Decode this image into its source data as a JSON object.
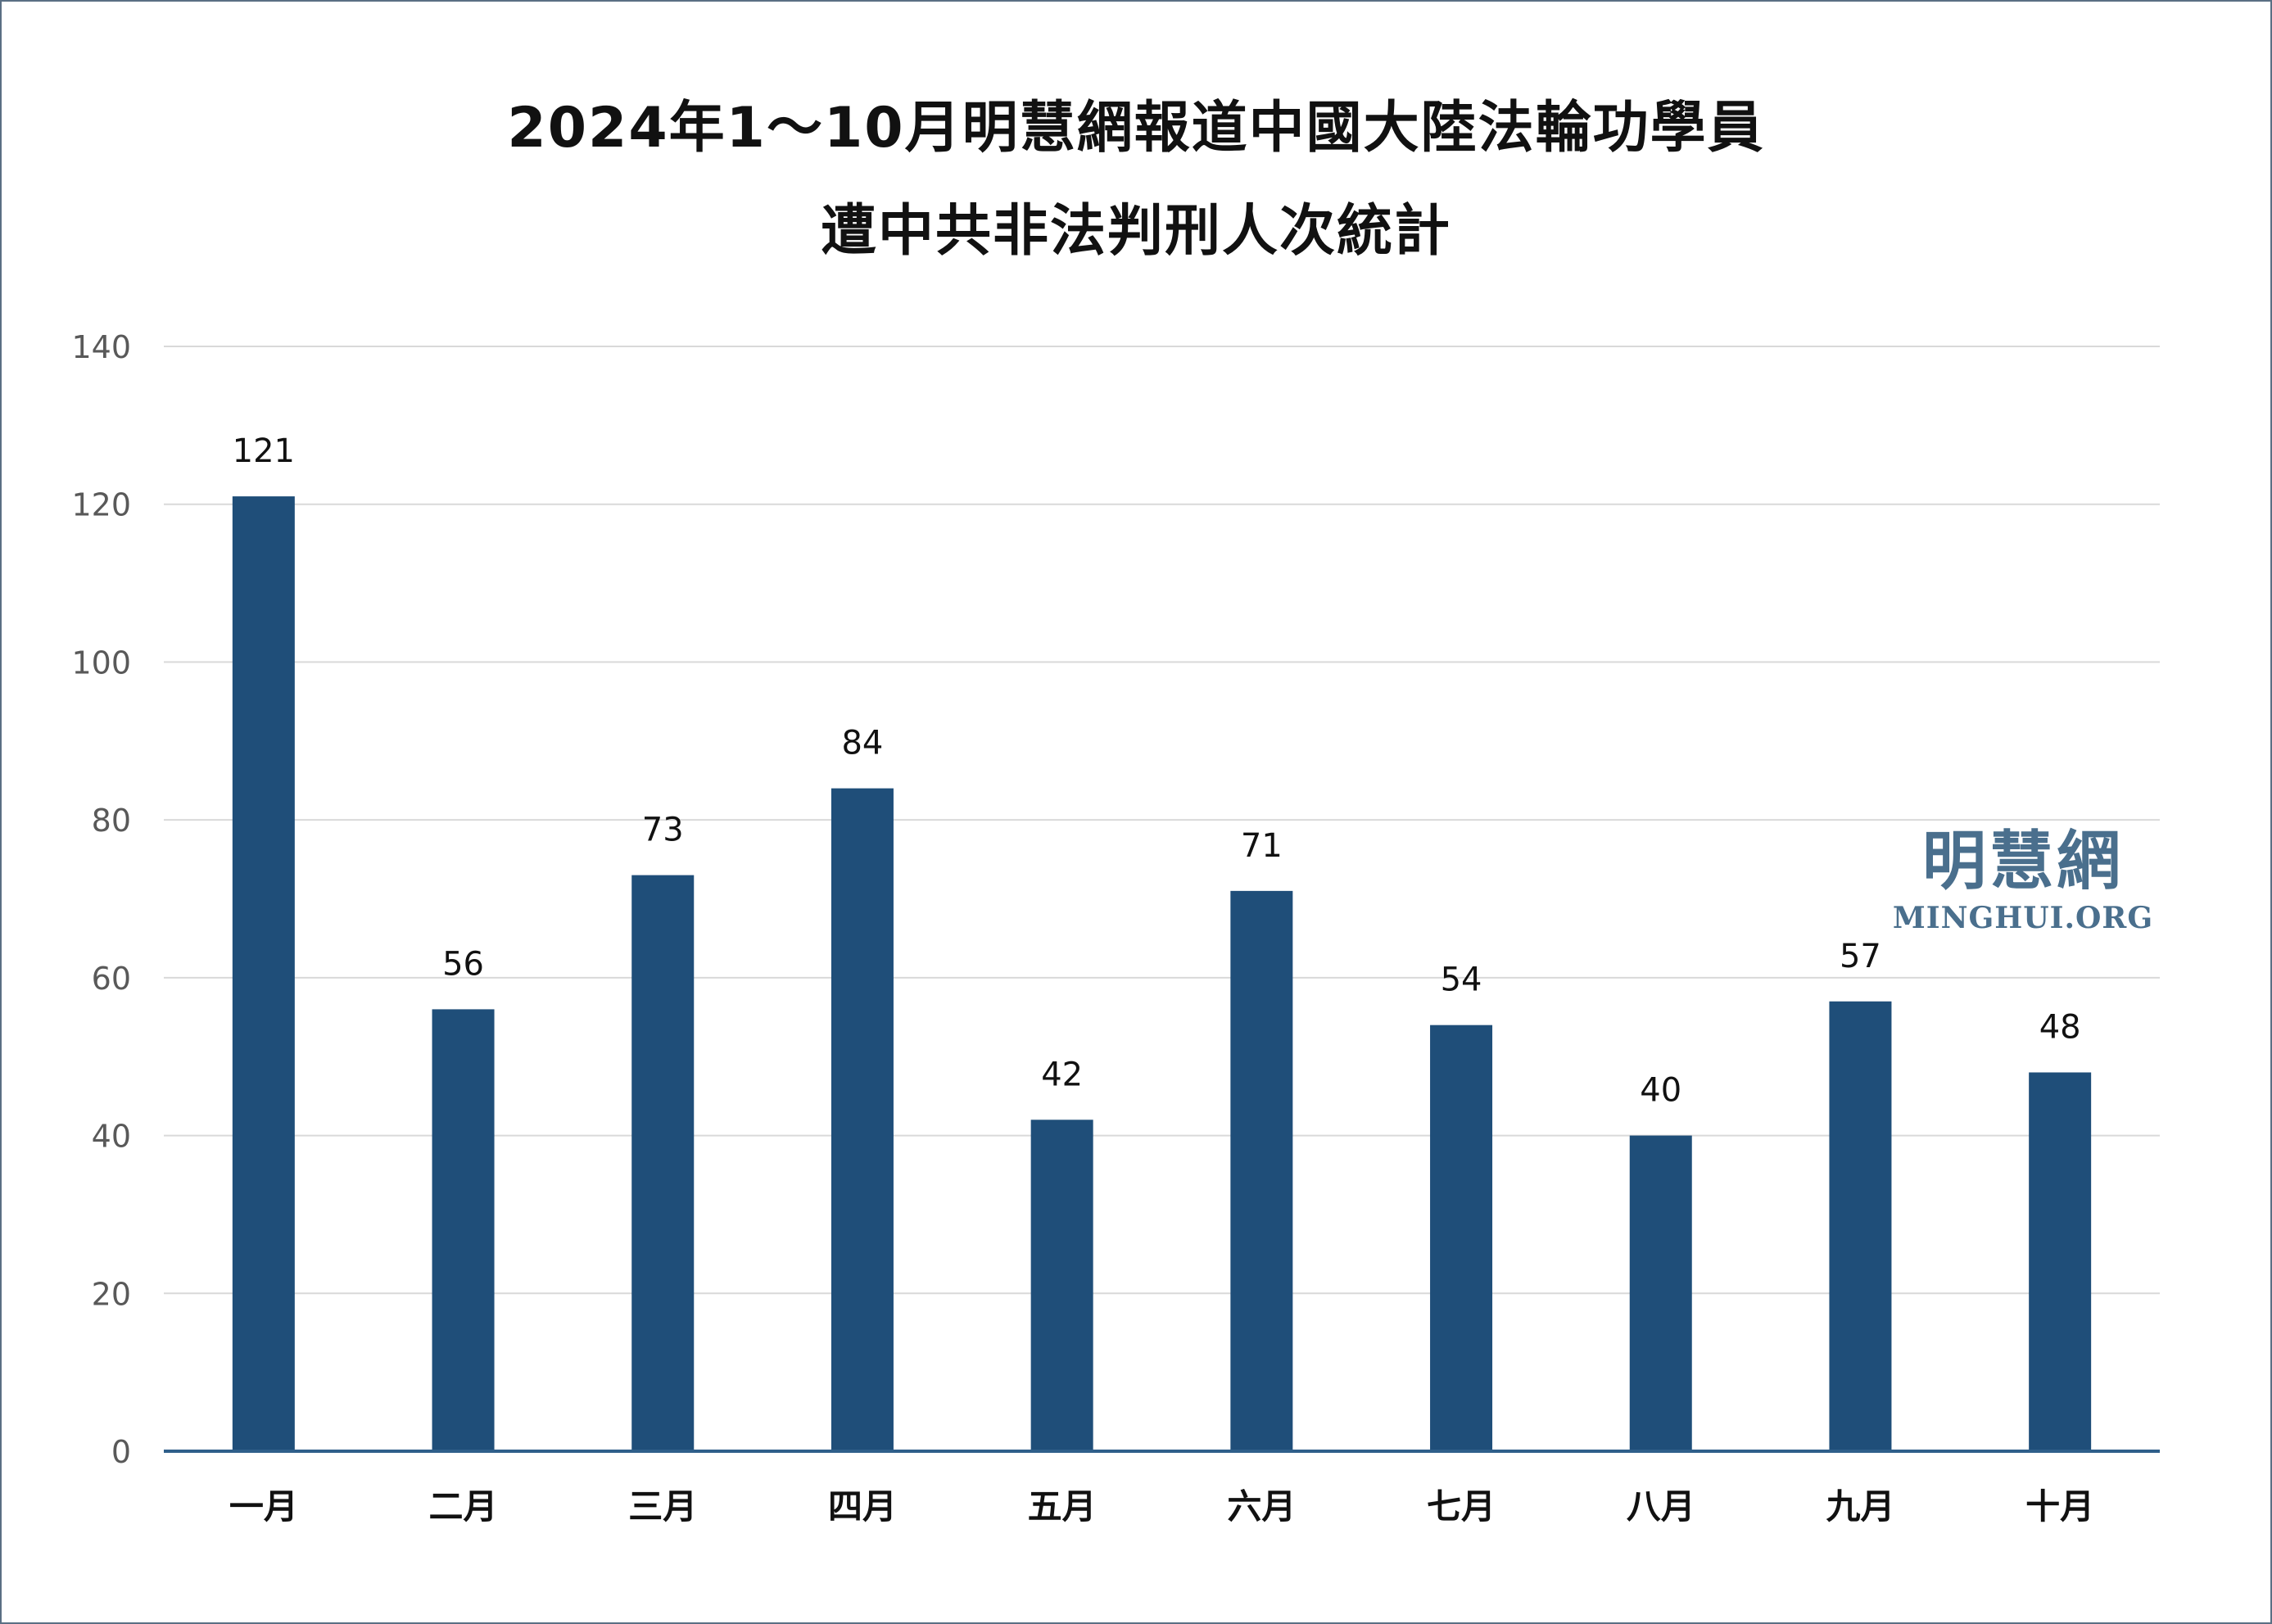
{
  "chart_data": {
    "type": "bar",
    "title": "2024年1～10月明慧網報道中國大陸法輪功學員",
    "subtitle": "遭中共非法判刑人次統計",
    "categories": [
      "一月",
      "二月",
      "三月",
      "四月",
      "五月",
      "六月",
      "七月",
      "八月",
      "九月",
      "十月"
    ],
    "values": [
      121,
      56,
      73,
      84,
      42,
      71,
      54,
      40,
      57,
      48
    ],
    "ylim": [
      0,
      140
    ],
    "yticks": [
      0,
      20,
      40,
      60,
      80,
      100,
      120,
      140
    ],
    "grid": true,
    "data_labels": true,
    "bar_color": "#1f4e79",
    "axis_color": "#2f5f8a",
    "grid_color": "#d9d9d9"
  },
  "watermark": {
    "name": "明慧網",
    "url": "MINGHUI.ORG",
    "color": "#4a6f8d"
  }
}
